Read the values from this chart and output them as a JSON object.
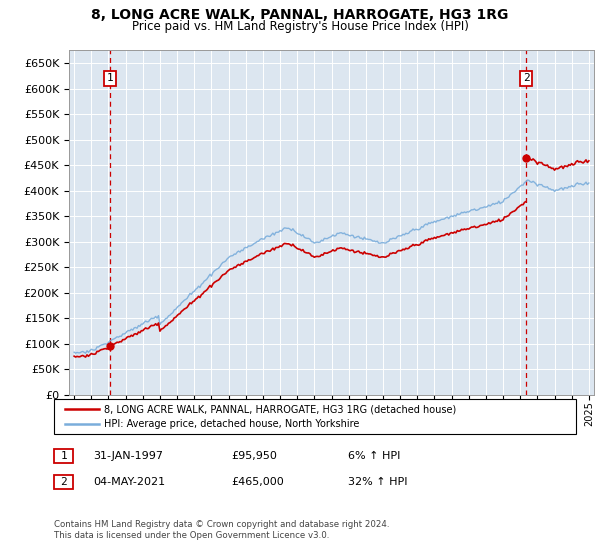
{
  "title": "8, LONG ACRE WALK, PANNAL, HARROGATE, HG3 1RG",
  "subtitle": "Price paid vs. HM Land Registry's House Price Index (HPI)",
  "bg_color": "#dce6f0",
  "grid_color": "#ffffff",
  "ylim": [
    0,
    675000
  ],
  "yticks": [
    0,
    50000,
    100000,
    150000,
    200000,
    250000,
    300000,
    350000,
    400000,
    450000,
    500000,
    550000,
    600000,
    650000
  ],
  "ytick_labels": [
    "£0",
    "£50K",
    "£100K",
    "£150K",
    "£200K",
    "£250K",
    "£300K",
    "£350K",
    "£400K",
    "£450K",
    "£500K",
    "£550K",
    "£600K",
    "£650K"
  ],
  "sale1_date": 1997.08,
  "sale1_price": 95950,
  "sale2_date": 2021.34,
  "sale2_price": 465000,
  "legend_line1": "8, LONG ACRE WALK, PANNAL, HARROGATE, HG3 1RG (detached house)",
  "legend_line2": "HPI: Average price, detached house, North Yorkshire",
  "table_row1": [
    "1",
    "31-JAN-1997",
    "£95,950",
    "6% ↑ HPI"
  ],
  "table_row2": [
    "2",
    "04-MAY-2021",
    "£465,000",
    "32% ↑ HPI"
  ],
  "footnote": "Contains HM Land Registry data © Crown copyright and database right 2024.\nThis data is licensed under the Open Government Licence v3.0.",
  "hpi_color": "#7aaddb",
  "sale_line_color": "#cc0000",
  "dashed_line_color": "#cc0000",
  "xlim_start": 1994.7,
  "xlim_end": 2025.3
}
